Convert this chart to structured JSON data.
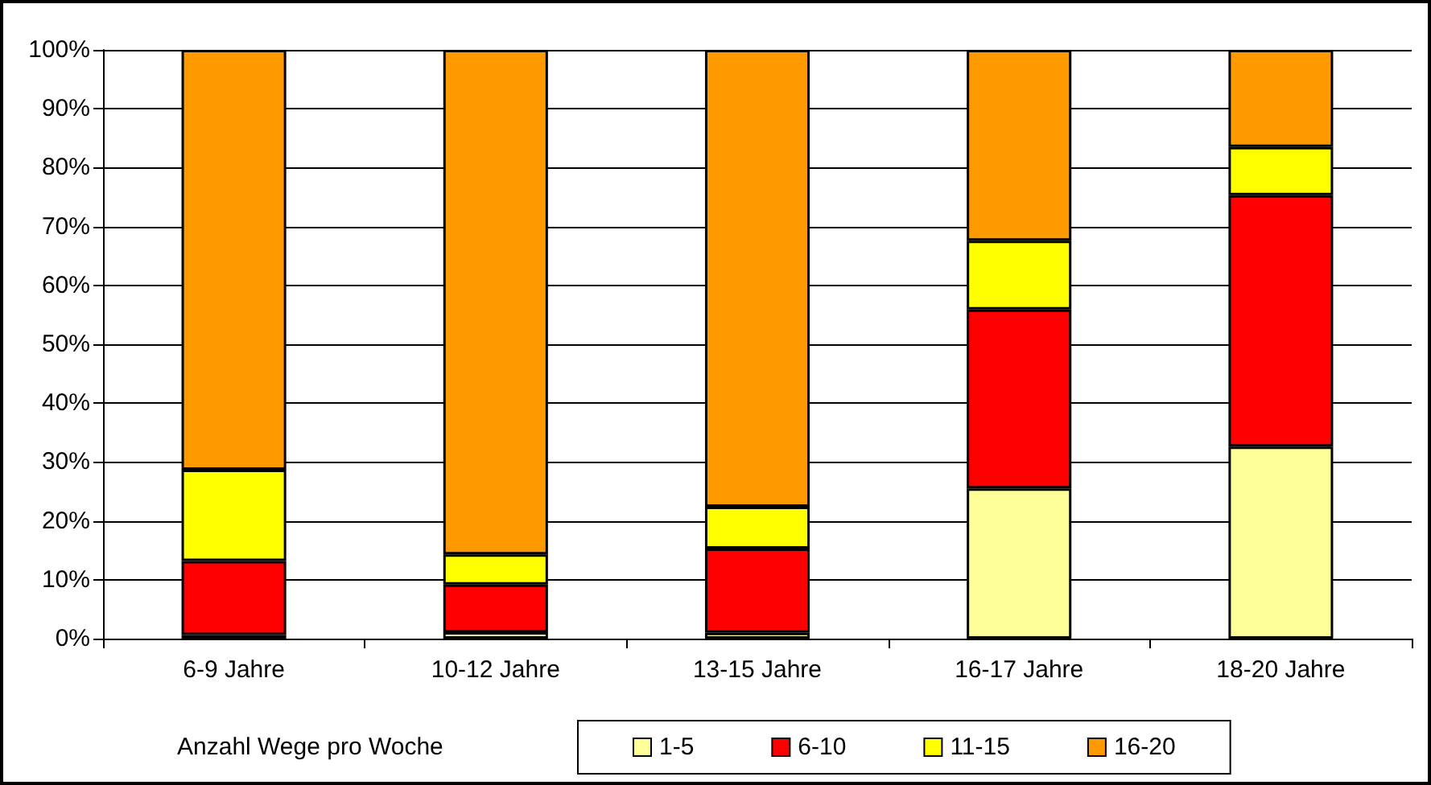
{
  "chart_data": {
    "type": "bar",
    "stacked": true,
    "categories": [
      "6-9 Jahre",
      "10-12 Jahre",
      "13-15 Jahre",
      "16-17 Jahre",
      "18-20 Jahre"
    ],
    "series": [
      {
        "name": "1-5",
        "color": "#ffff99",
        "values": [
          0.6,
          1.1,
          1.0,
          25.5,
          32.6
        ]
      },
      {
        "name": "6-10",
        "color": "#ff0000",
        "values": [
          12.6,
          8.1,
          14.3,
          30.4,
          42.7
        ]
      },
      {
        "name": "11-15",
        "color": "#ffff00",
        "values": [
          15.5,
          5.1,
          7.1,
          11.7,
          8.2
        ]
      },
      {
        "name": "16-20",
        "color": "#ff9900",
        "values": [
          71.3,
          85.7,
          77.6,
          32.4,
          16.5
        ]
      }
    ],
    "ylim": [
      0,
      100
    ],
    "yticks": [
      {
        "value": 0,
        "label": "0%"
      },
      {
        "value": 10,
        "label": "10%"
      },
      {
        "value": 20,
        "label": "20%"
      },
      {
        "value": 30,
        "label": "30%"
      },
      {
        "value": 40,
        "label": "40%"
      },
      {
        "value": 50,
        "label": "50%"
      },
      {
        "value": 60,
        "label": "60%"
      },
      {
        "value": 70,
        "label": "70%"
      },
      {
        "value": 80,
        "label": "80%"
      },
      {
        "value": 90,
        "label": "90%"
      },
      {
        "value": 100,
        "label": "100%"
      }
    ],
    "grid": "y",
    "legend": "bottom",
    "legend_title": "Anzahl Wege pro Woche"
  }
}
